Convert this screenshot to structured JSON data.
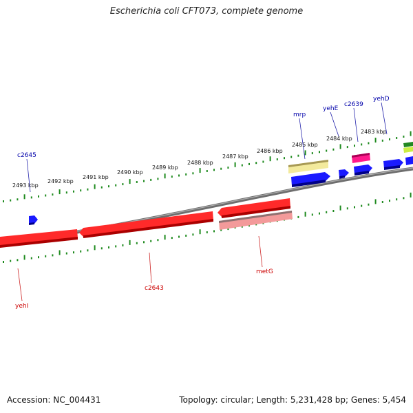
{
  "title": "Escherichia coli CFT073, complete genome",
  "accession_text": "Accession: NC_004431",
  "topology_text": "Topology: circular; Length: 5,231,428 bp; Genes: 5,454",
  "colors": {
    "forward_gene": "#0000ee",
    "reverse_gene": "#ee0000",
    "reverse_gene_light": "#f08a8a",
    "backbone": "#7a7a7a",
    "tick": "#1e8a1e",
    "label_forward": "#0000aa",
    "label_reverse": "#cc0000",
    "feature_yellow": "#f0e68c",
    "feature_magenta": "#ee1177",
    "feature_green": "#33aa22",
    "feature_lime": "#ccee44"
  },
  "scale": {
    "position_labels": [
      "2493 kbp",
      "2492 kbp",
      "2491 kbp",
      "2490 kbp",
      "2489 kbp",
      "2488 kbp",
      "2487 kbp",
      "2486 kbp",
      "2485 kbp",
      "2484 kbp",
      "2483 kbp"
    ]
  },
  "genes": {
    "forward": [
      "c2645",
      "mrp",
      "yehE",
      "c2639",
      "yehD"
    ],
    "reverse": [
      "yehI",
      "c2643",
      "metG"
    ]
  }
}
